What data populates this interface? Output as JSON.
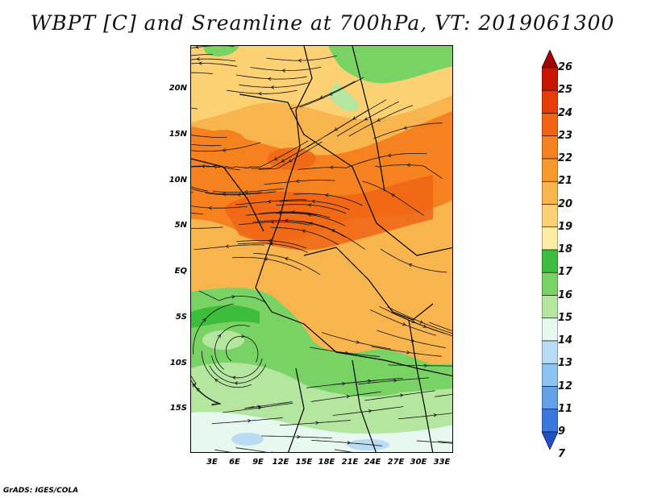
{
  "title": "WBPT [C] and Sreamline at 700hPa, VT: 2019061300",
  "footer": "GrADS: IGES/COLA",
  "map": {
    "lat_labels": [
      "20N",
      "15N",
      "10N",
      "5N",
      "EQ",
      "5S",
      "10S",
      "15S"
    ],
    "lon_labels": [
      "3E",
      "6E",
      "9E",
      "12E",
      "15E",
      "18E",
      "21E",
      "24E",
      "27E",
      "30E",
      "33E"
    ]
  },
  "colorbar": {
    "labels": [
      "26",
      "25",
      "24",
      "23",
      "22",
      "21",
      "20",
      "19",
      "18",
      "17",
      "16",
      "15",
      "14",
      "13",
      "12",
      "11",
      "9",
      "7"
    ],
    "colors": [
      "#a50000",
      "#c81400",
      "#e63c0a",
      "#f06414",
      "#f5821e",
      "#f79a2c",
      "#f9b54d",
      "#fbd173",
      "#fdeca6",
      "#3cbe3c",
      "#78d264",
      "#b4e6a0",
      "#e6f8f0",
      "#b9dcf5",
      "#8cc3f0",
      "#64a0e6",
      "#3c78dc",
      "#1e50c8"
    ]
  }
}
